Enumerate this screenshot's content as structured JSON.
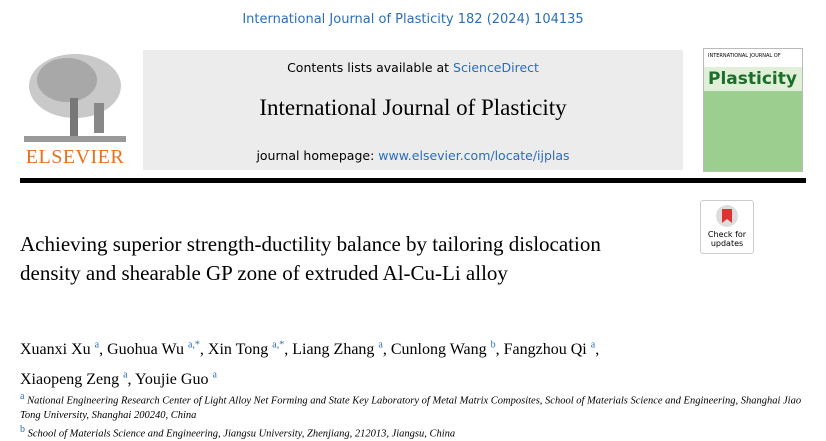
{
  "journal_ref": "International Journal of Plasticity 182 (2024) 104135",
  "header": {
    "contents_prefix": "Contents lists available at",
    "contents_link": "ScienceDirect",
    "journal_title": "International Journal of Plasticity",
    "homepage_prefix": "journal homepage:",
    "homepage_link": "www.elsevier.com/locate/ijplas"
  },
  "publisher": "ELSEVIER",
  "cover": {
    "top": "INTERNATIONAL JOURNAL OF",
    "name": "Plasticity"
  },
  "check_updates": [
    "Check for",
    "updates"
  ],
  "title": "Achieving superior strength-ductility balance by tailoring dislocation density and shearable GP zone of extruded Al-Cu-Li alloy",
  "author_separator": ",",
  "authors": [
    {
      "name": "Xuanxi Xu",
      "sup": "a"
    },
    {
      "name": "Guohua Wu",
      "sup": "a,*"
    },
    {
      "name": "Xin Tong",
      "sup": "a,*"
    },
    {
      "name": "Liang Zhang",
      "sup": "a"
    },
    {
      "name": "Cunlong Wang",
      "sup": "b"
    },
    {
      "name": "Fangzhou Qi",
      "sup": "a"
    },
    {
      "name": "Xiaopeng Zeng",
      "sup": "a"
    },
    {
      "name": "Youjie Guo",
      "sup": "a"
    }
  ],
  "affiliations": [
    {
      "label": "a",
      "text": "National Engineering Research Center of Light Alloy Net Forming and State Key Laboratory of Metal Matrix Composites, School of Materials Science and Engineering, Shanghai Jiao Tong University, Shanghai 200240, China"
    },
    {
      "label": "b",
      "text": "School of Materials Science and Engineering, Jiangsu University, Zhenjiang, 212013, Jiangsu, China"
    }
  ]
}
